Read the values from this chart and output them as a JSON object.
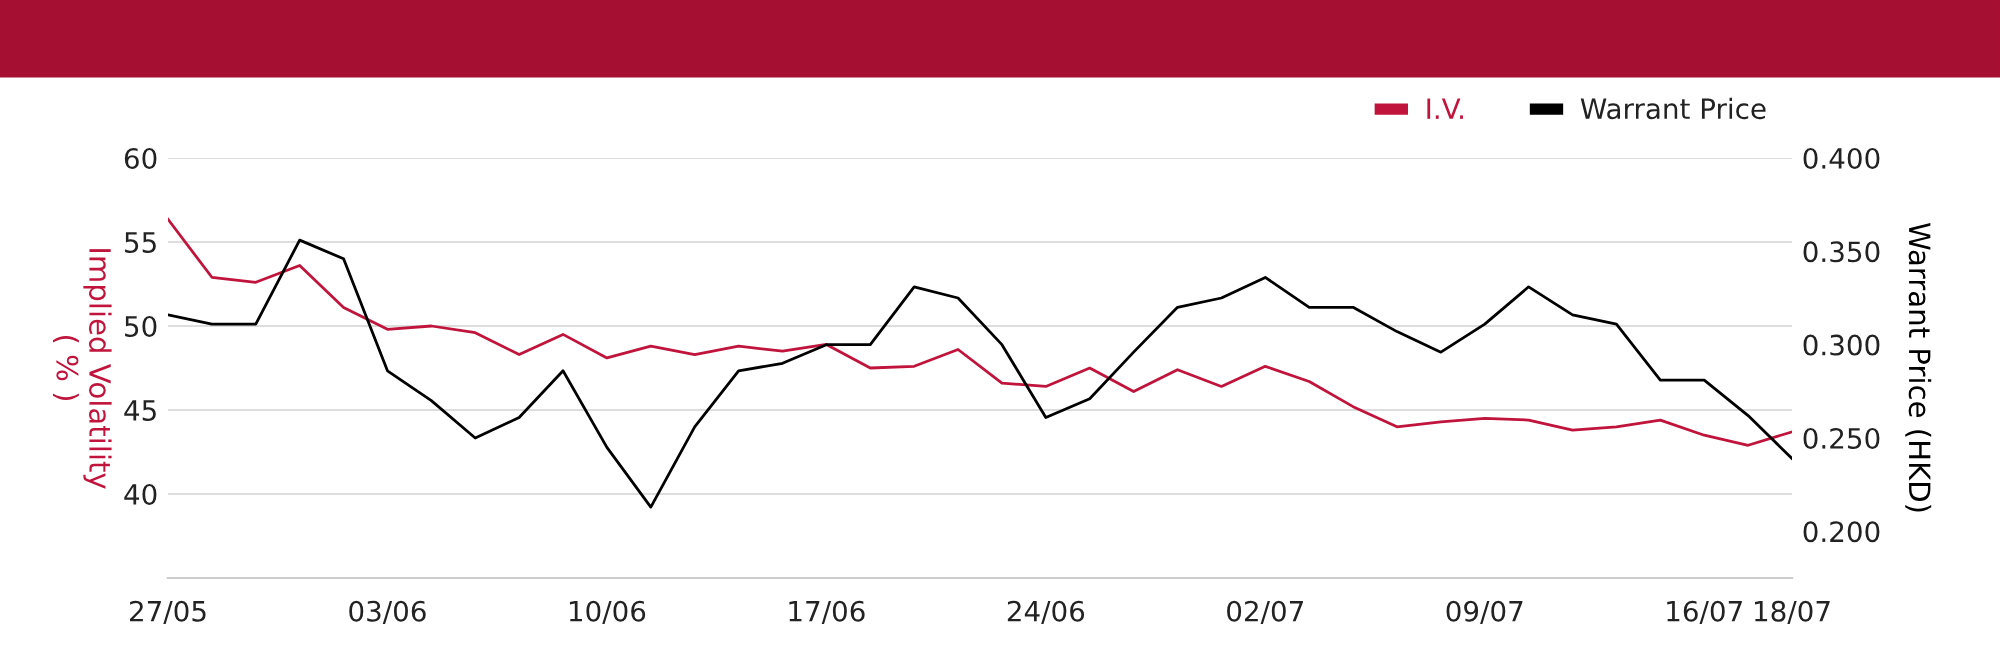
{
  "chart_data": {
    "type": "line",
    "categories": [
      "27/05",
      null,
      null,
      null,
      null,
      "03/06",
      null,
      null,
      null,
      null,
      "10/06",
      null,
      null,
      null,
      null,
      "17/06",
      null,
      null,
      null,
      null,
      "24/06",
      null,
      null,
      null,
      null,
      "02/07",
      null,
      null,
      null,
      null,
      "09/07",
      null,
      null,
      null,
      null,
      "16/07",
      null,
      "18/07"
    ],
    "series": [
      {
        "name": "I.V.",
        "color": "#c0143c",
        "values": [
          56.35,
          52.9,
          52.6,
          53.6,
          51.1,
          49.8,
          50.0,
          49.6,
          48.3,
          49.5,
          48.1,
          48.8,
          48.3,
          48.8,
          48.5,
          48.9,
          47.5,
          47.6,
          48.6,
          46.6,
          46.4,
          47.5,
          46.1,
          47.4,
          46.4,
          47.6,
          46.7,
          45.2,
          44.0,
          44.3,
          44.5,
          44.4,
          43.8,
          44.0,
          44.4,
          43.5,
          42.9,
          43.7
        ]
      },
      {
        "name": "Warrant Price",
        "color": "#000000",
        "axis": "y2",
        "values": [
          0.316,
          0.311,
          0.311,
          0.356,
          0.346,
          0.286,
          0.27,
          0.25,
          0.261,
          0.286,
          0.245,
          0.213,
          0.256,
          0.286,
          0.29,
          0.3,
          0.3,
          0.331,
          0.325,
          0.3,
          0.261,
          0.271,
          0.296,
          0.32,
          0.325,
          0.336,
          0.32,
          0.32,
          0.307,
          0.296,
          0.311,
          0.331,
          0.316,
          0.311,
          0.281,
          0.281,
          0.262,
          0.239
        ]
      }
    ],
    "ylabel": "Implied Volatility\n( % )",
    "y2label": "Warrant Price (HKD)",
    "ylim": [
      35,
      60
    ],
    "yticks": [
      40,
      45,
      50,
      55,
      60
    ],
    "y2lim": [
      0.175,
      0.4
    ],
    "y2ticks": [
      {
        "value": 0.2,
        "label": "0.200"
      },
      {
        "value": 0.25,
        "label": "0.250"
      },
      {
        "value": 0.3,
        "label": "0.300"
      },
      {
        "value": 0.35,
        "label": "0.350"
      },
      {
        "value": 0.4,
        "label": "0.400"
      }
    ],
    "grid": "y",
    "legend": "top right",
    "marker": "none",
    "line_style": "solid"
  }
}
